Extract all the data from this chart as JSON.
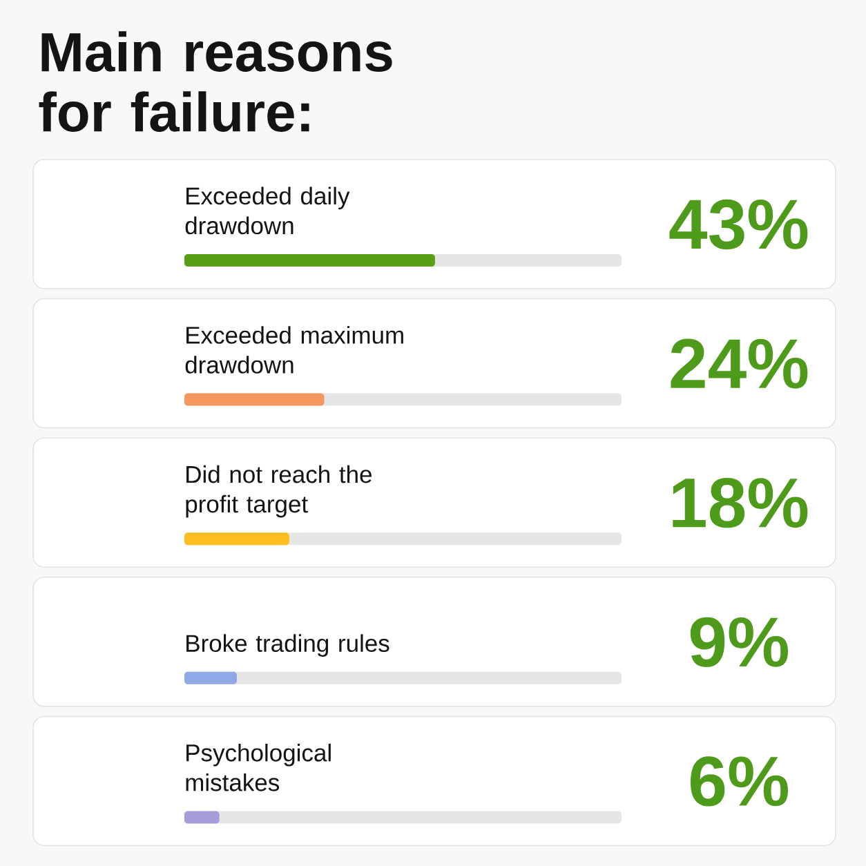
{
  "chart_data": {
    "type": "bar",
    "orientation": "horizontal",
    "title": "Main reasons for failure:",
    "categories": [
      "Exceeded daily drawdown",
      "Exceeded maximum drawdown",
      "Did not reach the profit target",
      "Broke trading rules",
      "Psychological mistakes"
    ],
    "values": [
      43,
      24,
      18,
      9,
      6
    ],
    "colors": [
      "#5a9e14",
      "#f4975f",
      "#fdbe21",
      "#8fa9e6",
      "#a79bd8"
    ],
    "value_labels": [
      "43%",
      "24%",
      "18%",
      "9%",
      "6%"
    ],
    "xlim": [
      0,
      75
    ],
    "tick_labels": "y"
  }
}
